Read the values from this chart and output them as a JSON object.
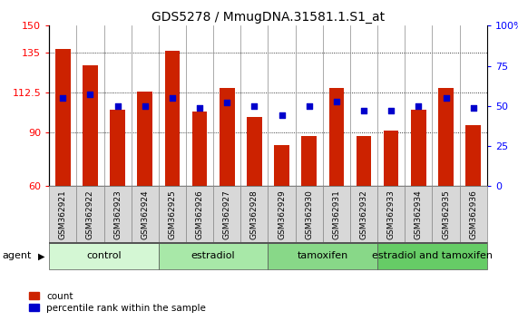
{
  "title": "GDS5278 / MmugDNA.31581.1.S1_at",
  "samples": [
    "GSM362921",
    "GSM362922",
    "GSM362923",
    "GSM362924",
    "GSM362925",
    "GSM362926",
    "GSM362927",
    "GSM362928",
    "GSM362929",
    "GSM362930",
    "GSM362931",
    "GSM362932",
    "GSM362933",
    "GSM362934",
    "GSM362935",
    "GSM362936"
  ],
  "counts": [
    137,
    128,
    103,
    113,
    136,
    102,
    115,
    99,
    83,
    88,
    115,
    88,
    91,
    103,
    115,
    94
  ],
  "percentile_ranks": [
    55,
    57,
    50,
    50,
    55,
    49,
    52,
    50,
    44,
    50,
    53,
    47,
    47,
    50,
    55,
    49
  ],
  "bar_color": "#cc2200",
  "dot_color": "#0000cc",
  "ylim_left": [
    60,
    150
  ],
  "ylim_right": [
    0,
    100
  ],
  "yticks_left": [
    60,
    90,
    112.5,
    135,
    150
  ],
  "yticks_right": [
    0,
    25,
    50,
    75,
    100
  ],
  "groups": [
    {
      "label": "control",
      "start": 0,
      "end": 4,
      "color": "#d4f7d4"
    },
    {
      "label": "estradiol",
      "start": 4,
      "end": 8,
      "color": "#a8e8a8"
    },
    {
      "label": "tamoxifen",
      "start": 8,
      "end": 12,
      "color": "#88d888"
    },
    {
      "label": "estradiol and tamoxifen",
      "start": 12,
      "end": 16,
      "color": "#66cc66"
    }
  ],
  "agent_label": "agent",
  "legend_count_label": "count",
  "legend_percentile_label": "percentile rank within the sample",
  "background_color": "#ffffff",
  "plot_bg_color": "#ffffff",
  "xtick_box_color": "#d8d8d8",
  "xtick_box_border": "#888888",
  "title_fontsize": 10,
  "tick_fontsize": 7,
  "group_label_fontsize": 8,
  "bar_width": 0.55,
  "dot_size": 18
}
